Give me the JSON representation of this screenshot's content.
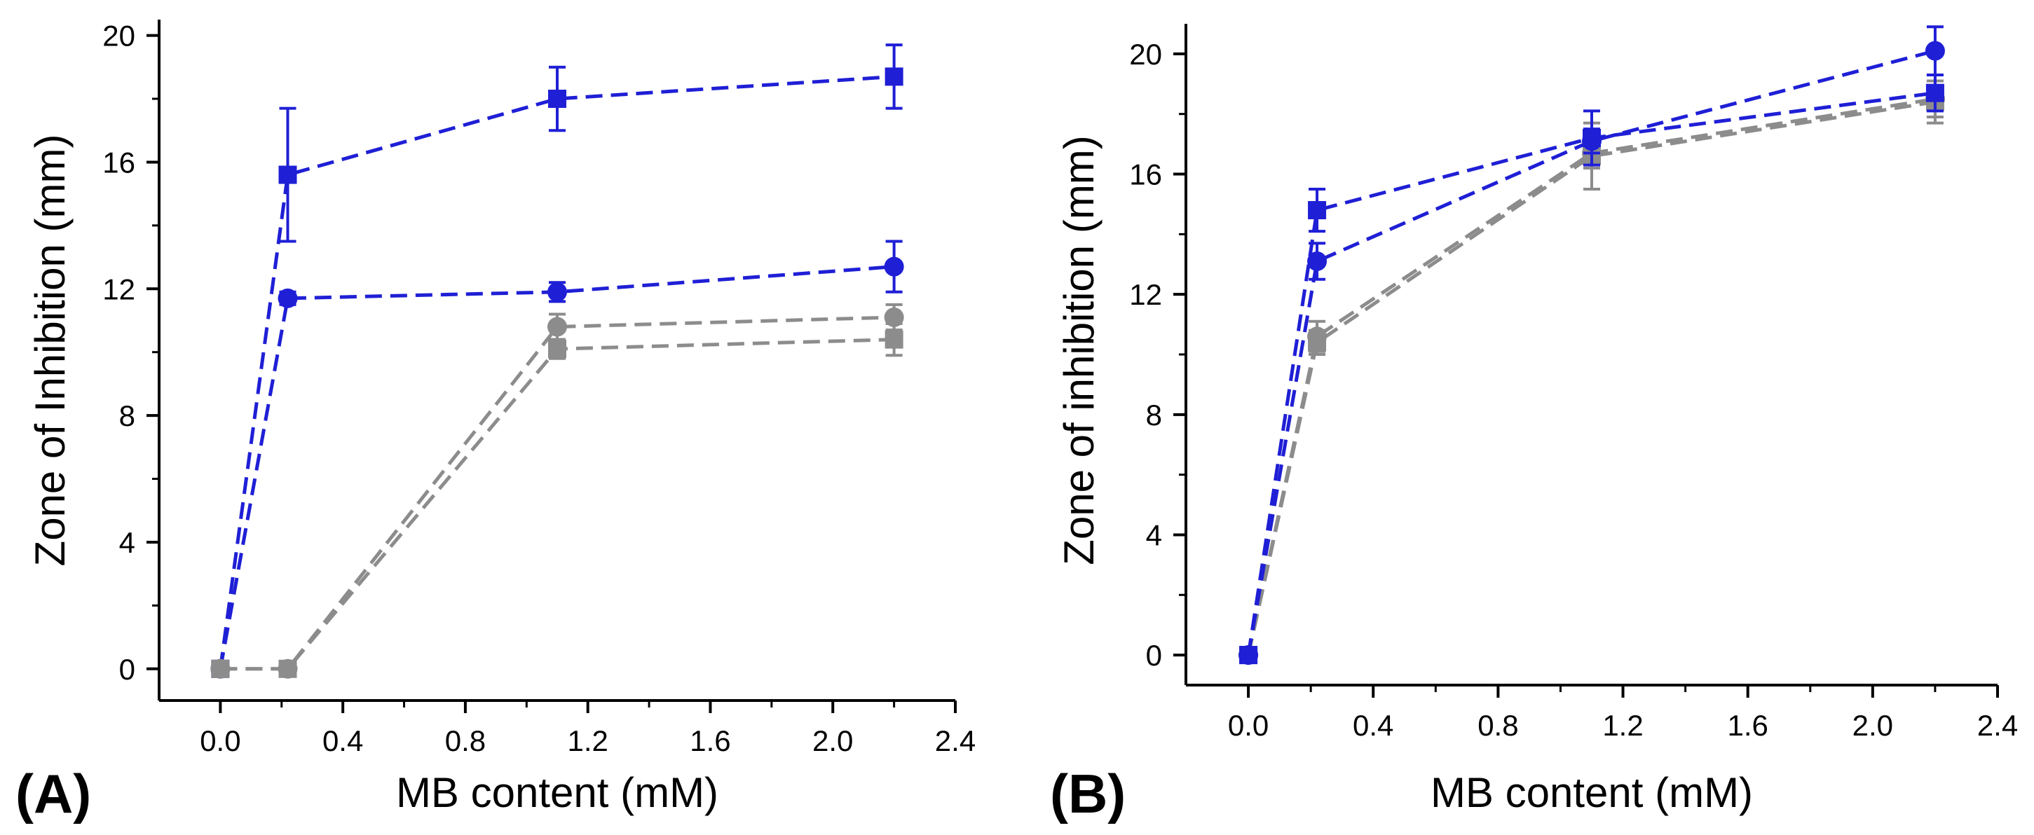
{
  "colors": {
    "blue": "#1f1fd6",
    "gray": "#8c8c8c",
    "axis": "#000000"
  },
  "chart_data": [
    {
      "type": "line",
      "panel_label": "(A)",
      "xlabel": "MB content (mM)",
      "ylabel": "Zone of Inhibition (mm)",
      "xlim": [
        -0.2,
        2.4
      ],
      "ylim": [
        -1,
        20.5
      ],
      "xticks": [
        0.0,
        0.4,
        0.8,
        1.2,
        1.6,
        2.0,
        2.4
      ],
      "xtick_labels": [
        "0.0",
        "0.4",
        "0.8",
        "1.2",
        "1.6",
        "2.0",
        "2.4"
      ],
      "yticks": [
        0,
        4,
        8,
        12,
        16,
        20
      ],
      "ytick_labels": [
        "0",
        "4",
        "8",
        "12",
        "16",
        "20"
      ],
      "series": [
        {
          "name": "blue-square",
          "color": "blue",
          "marker": "square",
          "x": [
            0.0,
            0.22,
            1.1,
            2.2
          ],
          "y": [
            0.0,
            15.6,
            18.0,
            18.7
          ],
          "err": [
            0,
            2.1,
            1.0,
            1.0
          ]
        },
        {
          "name": "blue-circle",
          "color": "blue",
          "marker": "circle",
          "x": [
            0.0,
            0.22,
            1.1,
            2.2
          ],
          "y": [
            0.0,
            11.7,
            11.9,
            12.7
          ],
          "err": [
            0,
            0.2,
            0.3,
            0.8
          ]
        },
        {
          "name": "gray-circle",
          "color": "gray",
          "marker": "circle",
          "x": [
            0.0,
            0.22,
            1.1,
            2.2
          ],
          "y": [
            0.0,
            0.0,
            10.8,
            11.1
          ],
          "err": [
            0,
            0,
            0.4,
            0.4
          ]
        },
        {
          "name": "gray-square",
          "color": "gray",
          "marker": "square",
          "x": [
            0.0,
            0.22,
            1.1,
            2.2
          ],
          "y": [
            0.0,
            0.0,
            10.1,
            10.4
          ],
          "err": [
            0,
            0,
            0.3,
            0.5
          ]
        }
      ]
    },
    {
      "type": "line",
      "panel_label": "(B)",
      "xlabel": "MB content (mM)",
      "ylabel": "Zone of inhibition (mm)",
      "xlim": [
        -0.2,
        2.4
      ],
      "ylim": [
        -1,
        21
      ],
      "xticks": [
        0.0,
        0.4,
        0.8,
        1.2,
        1.6,
        2.0,
        2.4
      ],
      "xtick_labels": [
        "0.0",
        "0.4",
        "0.8",
        "1.2",
        "1.6",
        "2.0",
        "2.4"
      ],
      "yticks": [
        0,
        4,
        8,
        12,
        16,
        20
      ],
      "ytick_labels": [
        "0",
        "4",
        "8",
        "12",
        "16",
        "20"
      ],
      "series": [
        {
          "name": "gray-circle",
          "color": "gray",
          "marker": "circle",
          "x": [
            0.0,
            0.22,
            1.1,
            2.2
          ],
          "y": [
            0.0,
            10.6,
            16.7,
            18.5
          ],
          "err": [
            0,
            0.5,
            0.5,
            0.6
          ]
        },
        {
          "name": "gray-square",
          "color": "gray",
          "marker": "square",
          "x": [
            0.0,
            0.22,
            1.1,
            2.2
          ],
          "y": [
            0.0,
            10.4,
            16.6,
            18.4
          ],
          "err": [
            0,
            0.4,
            1.1,
            0.7
          ]
        },
        {
          "name": "blue-circle",
          "color": "blue",
          "marker": "circle",
          "x": [
            0.0,
            0.22,
            1.1,
            2.2
          ],
          "y": [
            0.0,
            13.1,
            17.1,
            20.1
          ],
          "err": [
            0,
            0.6,
            0.4,
            0.8
          ]
        },
        {
          "name": "blue-square",
          "color": "blue",
          "marker": "square",
          "x": [
            0.0,
            0.22,
            1.1,
            2.2
          ],
          "y": [
            0.0,
            14.8,
            17.2,
            18.7
          ],
          "err": [
            0,
            0.7,
            0.9,
            0.6
          ]
        }
      ]
    }
  ]
}
